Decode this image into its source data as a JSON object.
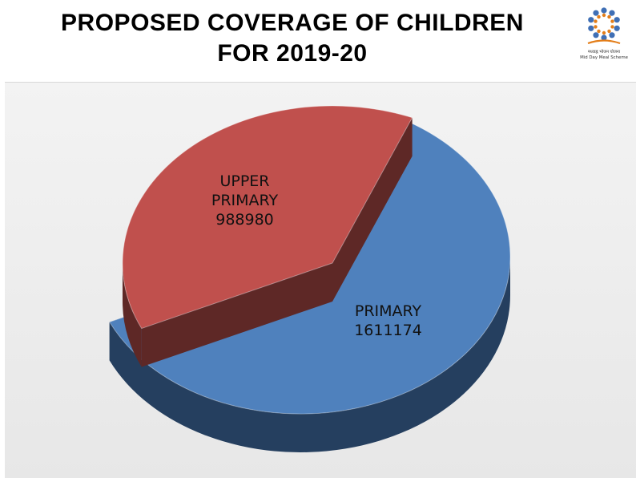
{
  "title_lines": [
    "PROPOSED COVERAGE OF CHILDREN",
    "FOR 2019-20"
  ],
  "chart_data": {
    "type": "pie",
    "title": "PROPOSED COVERAGE OF CHILDREN FOR 2019-20",
    "style": "3d-exploded",
    "slices": [
      {
        "label_lines": [
          "PRIMARY"
        ],
        "value": 1611174,
        "value_text": "1611174",
        "color": "#4f81bd",
        "side_color": "#253f5f"
      },
      {
        "label_lines": [
          "UPPER",
          "PRIMARY"
        ],
        "value": 988980,
        "value_text": "988980",
        "color": "#c0504d",
        "side_color": "#5e2826"
      }
    ],
    "legend": "none"
  },
  "logo": {
    "icon": "mid-day-meal-logo-icon",
    "text_lines": [
      "मध्याह्न भोजन योजना",
      "Mid Day Meal Scheme"
    ],
    "accent": "#e37e1a",
    "people_color": "#3f6fb5"
  }
}
